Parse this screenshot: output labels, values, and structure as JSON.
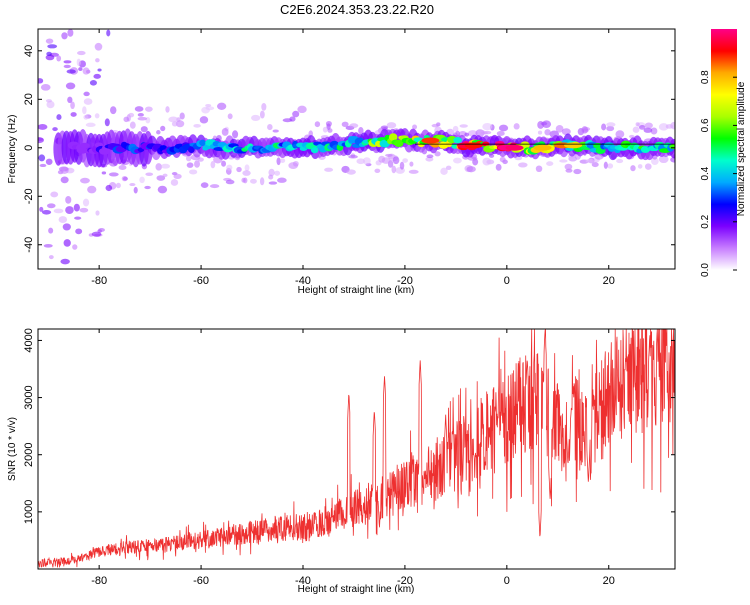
{
  "title": "C2E6.2024.353.23.22.R20",
  "chart_data": [
    {
      "type": "heatmap",
      "xlabel": "Height of straight line (km)",
      "ylabel": "Frequency (Hz)",
      "xlim": [
        -92,
        33
      ],
      "ylim": [
        -50,
        49
      ],
      "xticks": [
        -80,
        -60,
        -40,
        -20,
        0,
        20
      ],
      "yticks": [
        -40,
        -20,
        0,
        20,
        40
      ],
      "colorbar": {
        "label": "Normalized spectral amplitude",
        "range": [
          0.0,
          1.0
        ],
        "ticks": [
          "0.0",
          "0.2",
          "0.4",
          "0.6",
          "0.8"
        ],
        "colors": [
          "#ffffff",
          "#c77dff",
          "#7b00ff",
          "#0000ff",
          "#00aaff",
          "#00ffcc",
          "#00ff00",
          "#aaff00",
          "#ffff00",
          "#ffaa00",
          "#ff0000",
          "#ff0088"
        ]
      },
      "ridge": [
        {
          "x": -85,
          "f": 0,
          "amp": 0.15
        },
        {
          "x": -80,
          "f": 0,
          "amp": 0.2
        },
        {
          "x": -75,
          "f": 0,
          "amp": 0.3
        },
        {
          "x": -70,
          "f": 0,
          "amp": 0.3
        },
        {
          "x": -65,
          "f": 0,
          "amp": 0.3
        },
        {
          "x": -60,
          "f": 1,
          "amp": 0.4
        },
        {
          "x": -55,
          "f": 0,
          "amp": 0.45
        },
        {
          "x": -50,
          "f": 0,
          "amp": 0.45
        },
        {
          "x": -45,
          "f": 0,
          "amp": 0.45
        },
        {
          "x": -40,
          "f": 0,
          "amp": 0.4
        },
        {
          "x": -35,
          "f": 1,
          "amp": 0.45
        },
        {
          "x": -30,
          "f": 2,
          "amp": 0.5
        },
        {
          "x": -25,
          "f": 3,
          "amp": 0.6
        },
        {
          "x": -20,
          "f": 3,
          "amp": 0.6
        },
        {
          "x": -15,
          "f": 3,
          "amp": 0.85
        },
        {
          "x": -10,
          "f": 2,
          "amp": 0.6
        },
        {
          "x": -8,
          "f": 1,
          "amp": 0.9
        },
        {
          "x": -5,
          "f": 1,
          "amp": 0.8
        },
        {
          "x": 0,
          "f": 0,
          "amp": 1.0
        },
        {
          "x": 3,
          "f": 0,
          "amp": 0.9
        },
        {
          "x": 7,
          "f": 0,
          "amp": 0.75
        },
        {
          "x": 10,
          "f": 1,
          "amp": 0.55
        },
        {
          "x": 13,
          "f": 1,
          "amp": 0.6
        },
        {
          "x": 18,
          "f": 0,
          "amp": 0.5
        },
        {
          "x": 22,
          "f": 0,
          "amp": 0.5
        },
        {
          "x": 27,
          "f": 0,
          "amp": 0.5
        },
        {
          "x": 32,
          "f": 0,
          "amp": 0.5
        }
      ]
    },
    {
      "type": "line",
      "xlabel": "Height of straight line (km)",
      "ylabel": "SNR (10 * v/v)",
      "xlim": [
        -92,
        33
      ],
      "ylim": [
        0,
        4200
      ],
      "xticks": [
        -80,
        -60,
        -40,
        -20,
        0,
        20
      ],
      "yticks": [
        1000,
        2000,
        3000,
        4000
      ],
      "color": "#ee3030",
      "trend": [
        {
          "x": -92,
          "y": 100
        },
        {
          "x": -85,
          "y": 150
        },
        {
          "x": -80,
          "y": 300
        },
        {
          "x": -75,
          "y": 380
        },
        {
          "x": -70,
          "y": 400
        },
        {
          "x": -65,
          "y": 450
        },
        {
          "x": -60,
          "y": 500
        },
        {
          "x": -55,
          "y": 580
        },
        {
          "x": -50,
          "y": 650
        },
        {
          "x": -45,
          "y": 700
        },
        {
          "x": -40,
          "y": 750
        },
        {
          "x": -35,
          "y": 850
        },
        {
          "x": -30,
          "y": 1050
        },
        {
          "x": -25,
          "y": 1200
        },
        {
          "x": -20,
          "y": 1500
        },
        {
          "x": -15,
          "y": 1700
        },
        {
          "x": -10,
          "y": 1950
        },
        {
          "x": -5,
          "y": 2300
        },
        {
          "x": 0,
          "y": 2600
        },
        {
          "x": 3,
          "y": 2900
        },
        {
          "x": 5,
          "y": 3000
        },
        {
          "x": 10,
          "y": 2500
        },
        {
          "x": 13,
          "y": 2600
        },
        {
          "x": 16,
          "y": 2400
        },
        {
          "x": 20,
          "y": 3000
        },
        {
          "x": 25,
          "y": 3400
        },
        {
          "x": 30,
          "y": 3600
        },
        {
          "x": 33,
          "y": 3700
        }
      ],
      "peaks": [
        {
          "x": -31,
          "y": 3100
        },
        {
          "x": -26,
          "y": 2800
        },
        {
          "x": -24,
          "y": 3400
        },
        {
          "x": -17,
          "y": 3650
        },
        {
          "x": -12,
          "y": 2700
        },
        {
          "x": -2,
          "y": 2400
        },
        {
          "x": 4,
          "y": 3700
        },
        {
          "x": 7.5,
          "y": 4200
        },
        {
          "x": 13,
          "y": 3200
        },
        {
          "x": 28,
          "y": 4000
        }
      ],
      "dips": [
        {
          "x": -25,
          "y": 700
        },
        {
          "x": 6.5,
          "y": 520
        },
        {
          "x": 8.5,
          "y": 1200
        },
        {
          "x": 12,
          "y": 1800
        },
        {
          "x": 16,
          "y": 1500
        }
      ]
    }
  ]
}
